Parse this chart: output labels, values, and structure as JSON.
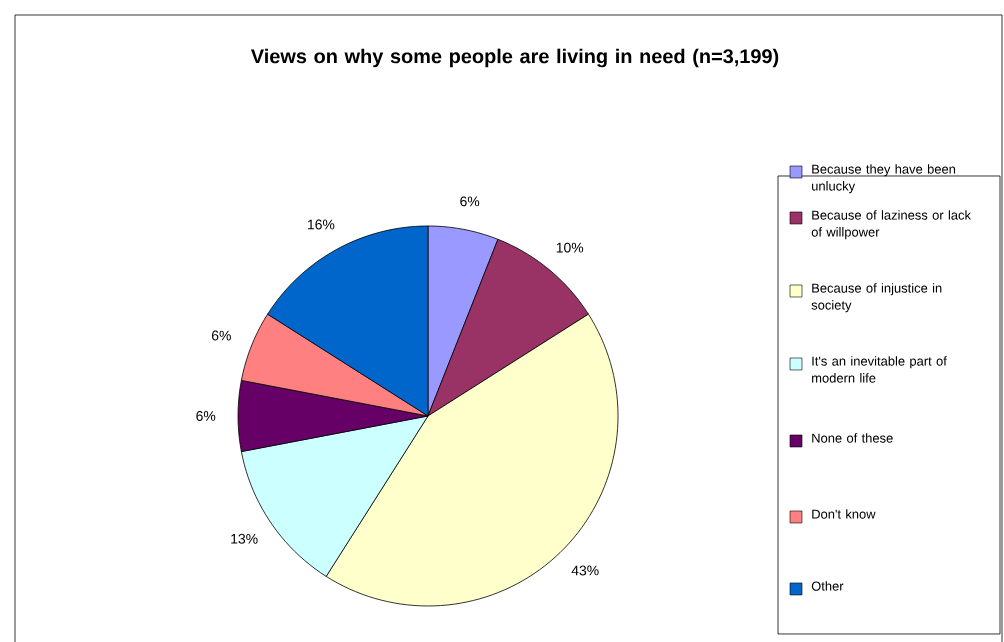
{
  "chart_data": {
    "type": "pie",
    "title": "Views on why some people are living in need (n=3,199)",
    "categories": [
      "Because they have been unlucky",
      "Because of laziness or lack of willpower",
      "Because of injustice in society",
      "It's an inevitable part of modern life",
      "None of these",
      "Don't know",
      "Other"
    ],
    "values": [
      6,
      10,
      43,
      13,
      6,
      6,
      16
    ],
    "value_labels": [
      "6%",
      "10%",
      "43%",
      "13%",
      "6%",
      "6%",
      "16%"
    ],
    "colors": [
      "#9999ff",
      "#993366",
      "#ffffcc",
      "#ccffff",
      "#660066",
      "#ff8080",
      "#0066cc"
    ],
    "legend": "right"
  }
}
